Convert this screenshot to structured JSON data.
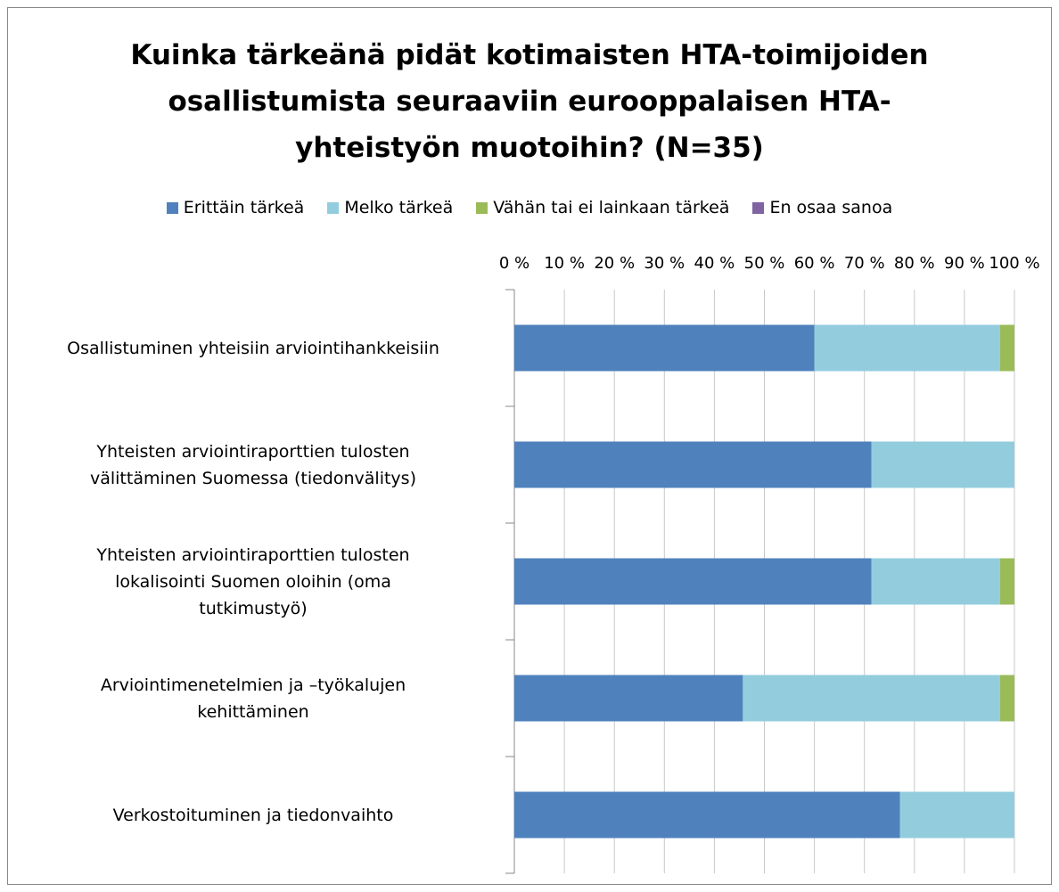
{
  "chart_data": {
    "type": "stacked_bar_horizontal",
    "title": "Kuinka tärkeänä pidät kotimaisten HTA-toimijoiden osallistumista seuraaviin eurooppalaisen HTA-yhteistyön muotoihin? (N=35)",
    "categories": [
      "Osallistuminen yhteisiin arviointihankkeisiin",
      "Yhteisten arviointiraporttien tulosten\nvälittäminen Suomessa (tiedonvälitys)",
      "Yhteisten arviointiraporttien tulosten\nlokalisointi Suomen oloihin (oma\ntutkimustyö)",
      "Arviointimenetelmien  ja –työkalujen\nkehittäminen",
      "Verkostoituminen ja tiedonvaihto"
    ],
    "series": [
      {
        "name": "Erittäin tärkeä",
        "color": "#4f81bd",
        "values": [
          60,
          71.4,
          71.4,
          45.7,
          77.1
        ]
      },
      {
        "name": "Melko tärkeä",
        "color": "#93cddd",
        "values": [
          37.1,
          28.6,
          25.7,
          51.4,
          22.9
        ]
      },
      {
        "name": "Vähän tai ei lainkaan tärkeä",
        "color": "#9bbb59",
        "values": [
          2.9,
          0,
          2.9,
          2.9,
          0
        ]
      },
      {
        "name": "En osaa sanoa",
        "color": "#8064a2",
        "values": [
          0,
          0,
          0,
          0,
          0
        ]
      }
    ],
    "xlim": [
      0,
      100
    ],
    "xticks": [
      {
        "value": 0,
        "label": "0 %"
      },
      {
        "value": 10,
        "label": "10 %"
      },
      {
        "value": 20,
        "label": "20 %"
      },
      {
        "value": 30,
        "label": "30 %"
      },
      {
        "value": 40,
        "label": "40 %"
      },
      {
        "value": 50,
        "label": "50 %"
      },
      {
        "value": 60,
        "label": "60 %"
      },
      {
        "value": 70,
        "label": "70 %"
      },
      {
        "value": 80,
        "label": "80 %"
      },
      {
        "value": 90,
        "label": "90 %"
      },
      {
        "value": 100,
        "label": "100 %"
      }
    ],
    "grid": true,
    "legend": "top"
  }
}
